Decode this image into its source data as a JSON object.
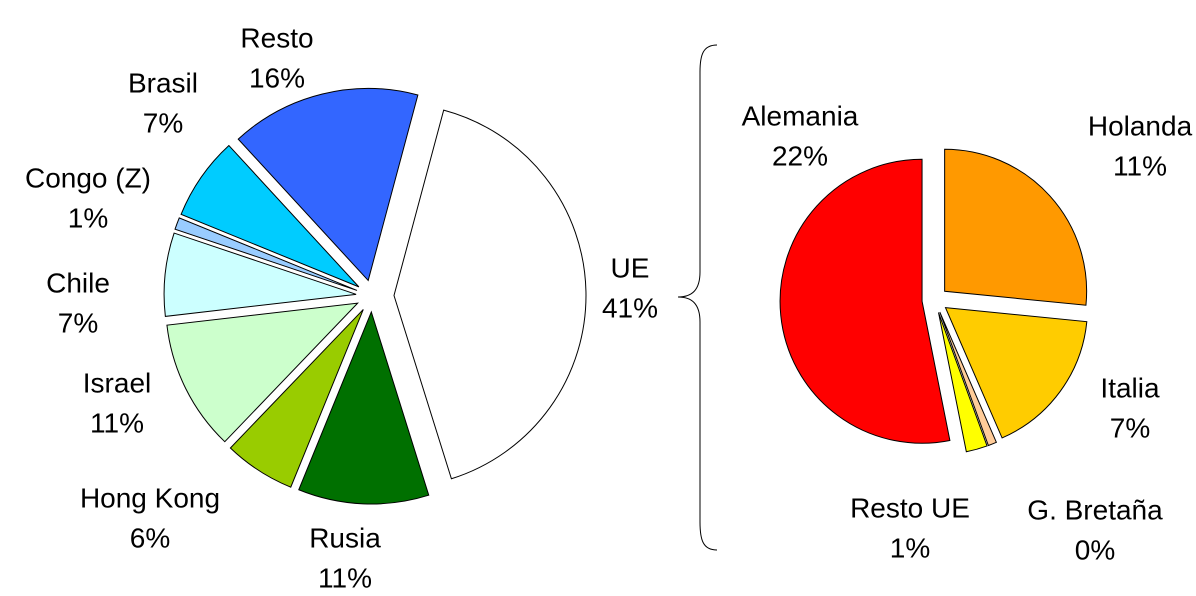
{
  "chart_data": [
    {
      "type": "pie",
      "categories": [
        "UE",
        "Rusia",
        "Hong Kong",
        "Israel",
        "Chile",
        "Congo (Z)",
        "Brasil",
        "Resto"
      ],
      "values": [
        41,
        11,
        6,
        11,
        7,
        1,
        7,
        16
      ],
      "value_labels": [
        "41%",
        "11%",
        "6%",
        "11%",
        "7%",
        "1%",
        "7%",
        "16%"
      ],
      "colors": [
        "#ffffff",
        "#007000",
        "#99cc00",
        "#ccffcc",
        "#ccffff",
        "#99ccff",
        "#00ccff",
        "#3366ff"
      ]
    },
    {
      "type": "pie",
      "categories": [
        "Holanda",
        "Italia",
        "G. Bretaña",
        "Resto UE",
        "Alemania"
      ],
      "values": [
        11,
        7,
        0.4,
        1,
        22
      ],
      "value_labels": [
        "11%",
        "7%",
        "0%",
        "1%",
        "22%"
      ],
      "colors": [
        "#ff9900",
        "#ffcc00",
        "#ffcc99",
        "#ffff00",
        "#ff0000"
      ]
    }
  ]
}
